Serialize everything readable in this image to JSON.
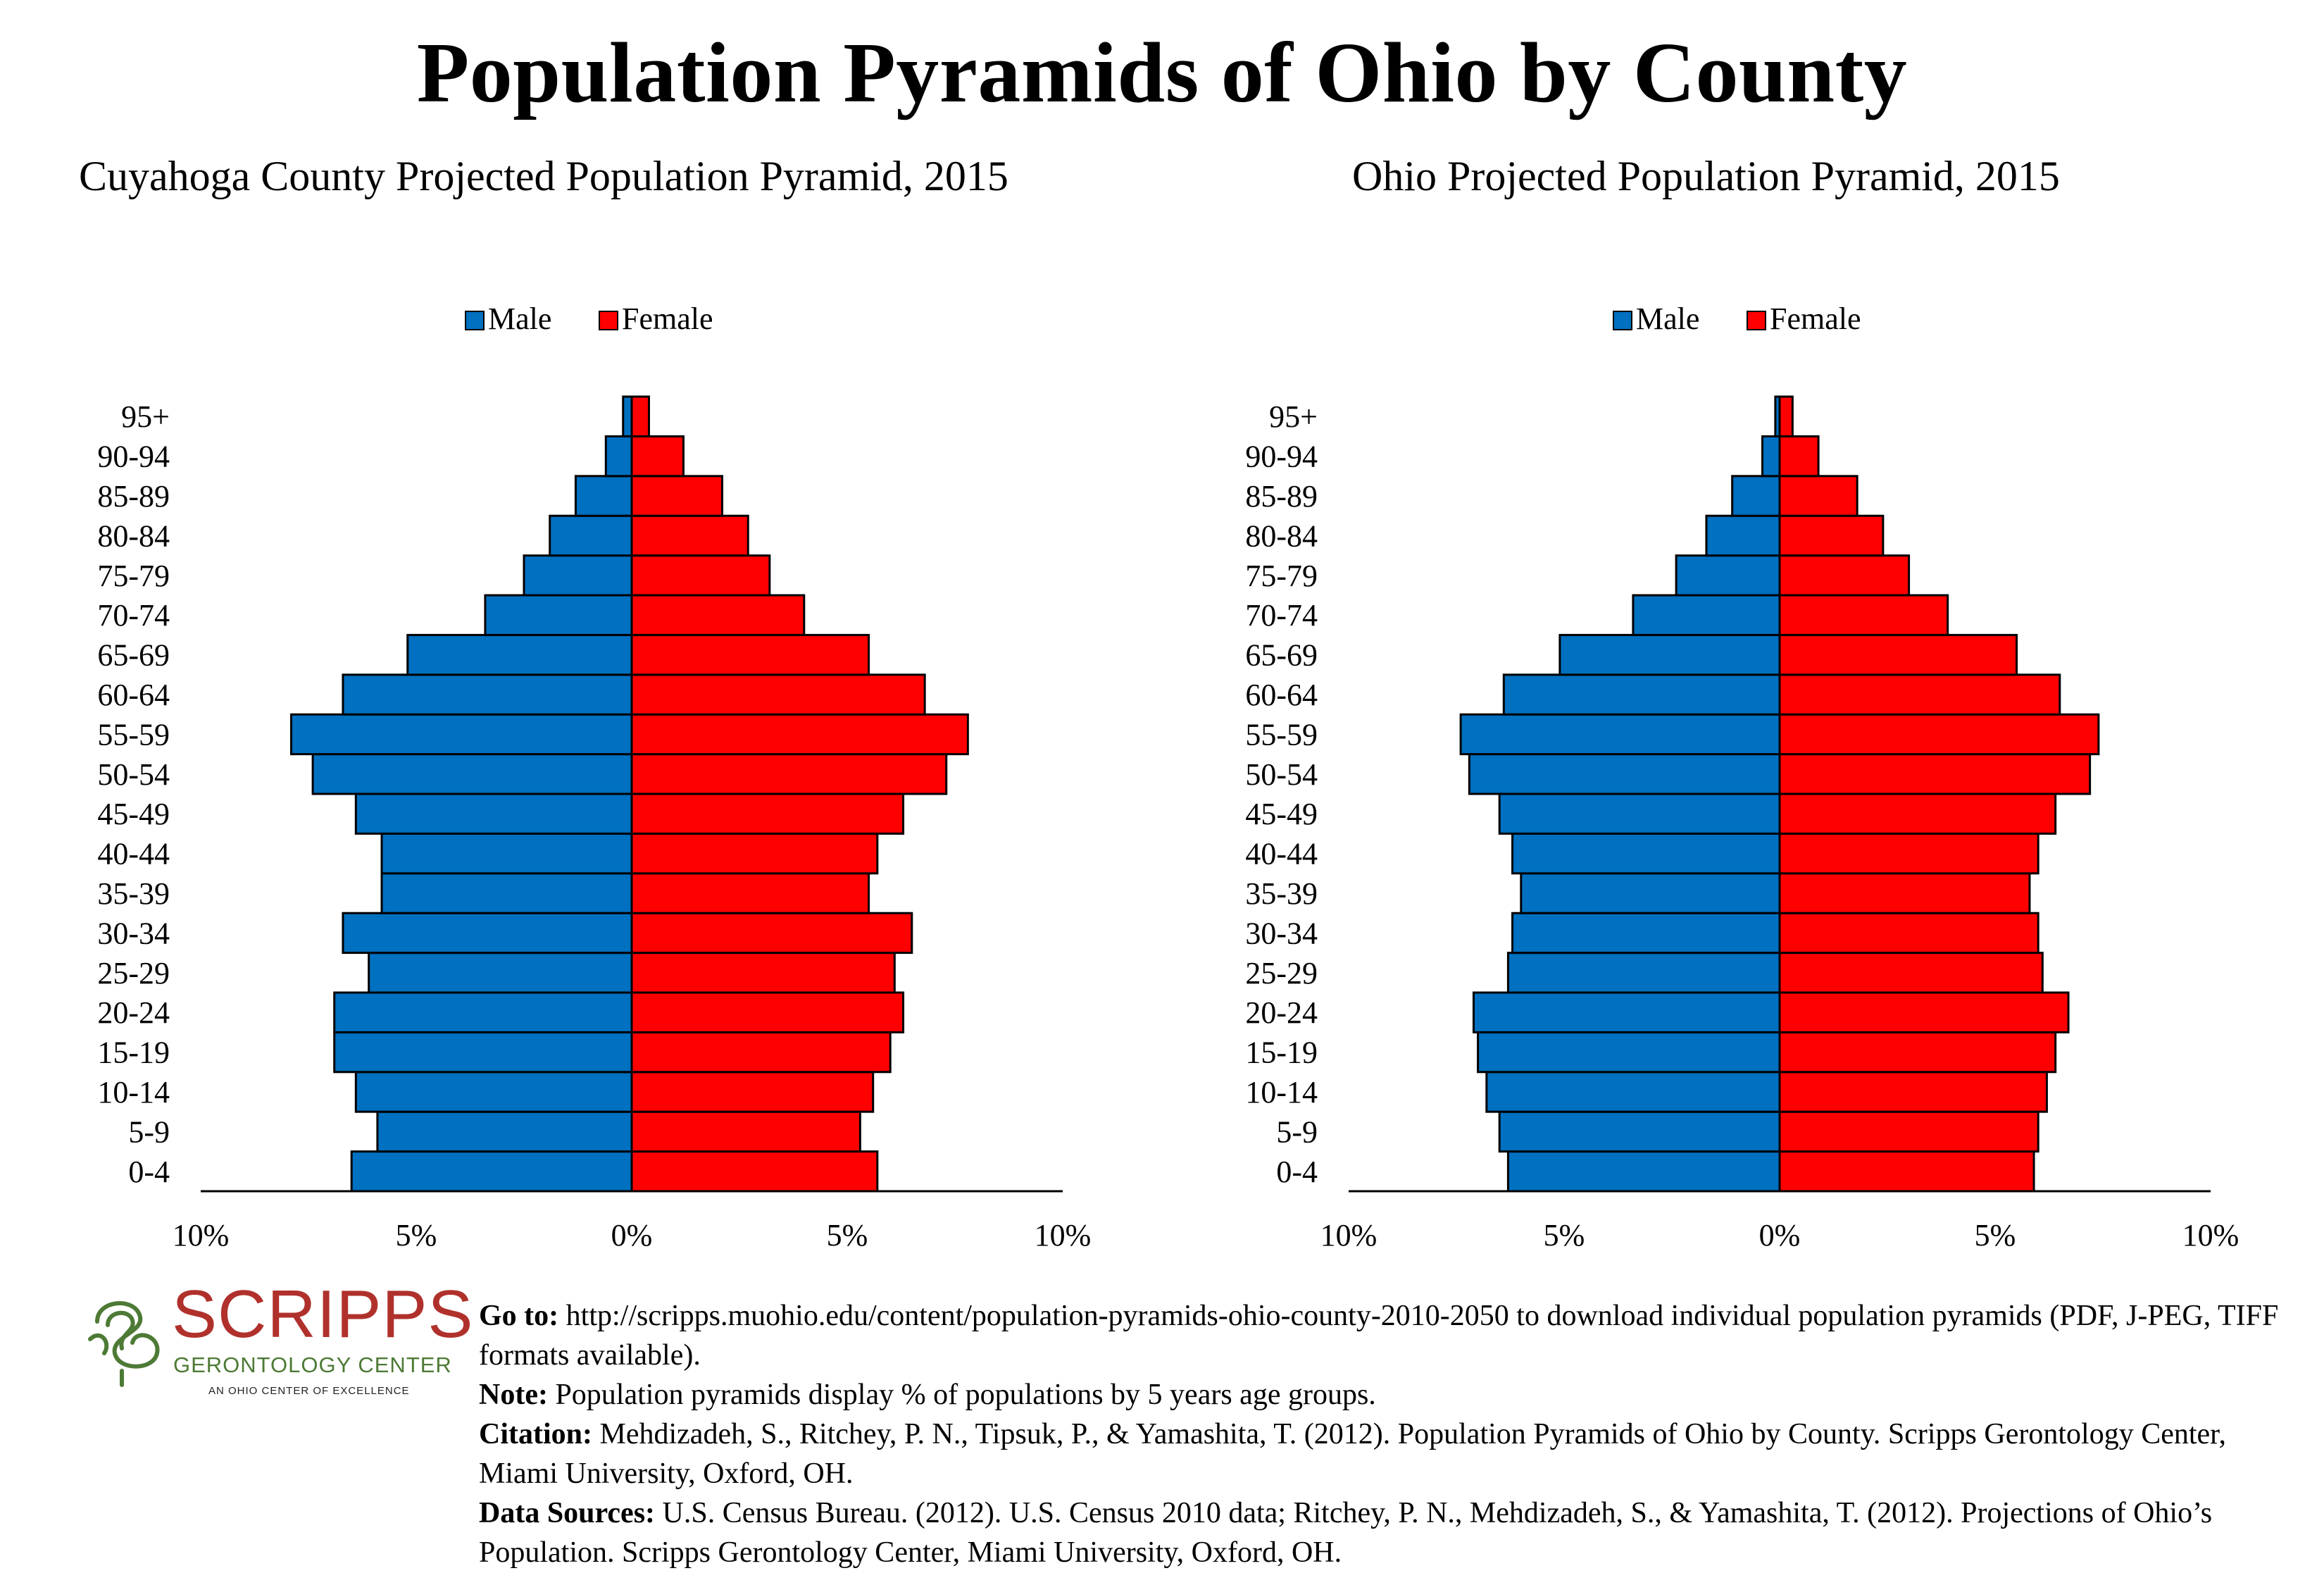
{
  "title": "Population Pyramids of Ohio by County",
  "chart_data": [
    {
      "type": "bar",
      "orientation": "horizontal-pyramid",
      "title": "Cuyahoga County Projected Population Pyramid, 2015",
      "legend": {
        "position": "top-center",
        "entries": [
          "Male",
          "Female"
        ]
      },
      "categories": [
        "0-4",
        "5-9",
        "10-14",
        "15-19",
        "20-24",
        "25-29",
        "30-34",
        "35-39",
        "40-44",
        "45-49",
        "50-54",
        "55-59",
        "60-64",
        "65-69",
        "70-74",
        "75-79",
        "80-84",
        "85-89",
        "90-94",
        "95+"
      ],
      "series": [
        {
          "name": "Male",
          "color": "#0070c0",
          "values": [
            6.5,
            5.9,
            6.4,
            6.9,
            6.9,
            6.1,
            6.7,
            5.8,
            5.8,
            6.4,
            7.4,
            7.9,
            6.7,
            5.2,
            3.4,
            2.5,
            1.9,
            1.3,
            0.6,
            0.2
          ]
        },
        {
          "name": "Female",
          "color": "#ff0000",
          "values": [
            5.7,
            5.3,
            5.6,
            6.0,
            6.3,
            6.1,
            6.5,
            5.5,
            5.7,
            6.3,
            7.3,
            7.8,
            6.8,
            5.5,
            4.0,
            3.2,
            2.7,
            2.1,
            1.2,
            0.4
          ]
        }
      ],
      "xlim": [
        -10,
        10
      ],
      "xticks": [
        "10%",
        "5%",
        "0%",
        "5%",
        "10%"
      ],
      "grid": false
    },
    {
      "type": "bar",
      "orientation": "horizontal-pyramid",
      "title": "Ohio Projected Population Pyramid, 2015",
      "legend": {
        "position": "top-center",
        "entries": [
          "Male",
          "Female"
        ]
      },
      "categories": [
        "0-4",
        "5-9",
        "10-14",
        "15-19",
        "20-24",
        "25-29",
        "30-34",
        "35-39",
        "40-44",
        "45-49",
        "50-54",
        "55-59",
        "60-64",
        "65-69",
        "70-74",
        "75-79",
        "80-84",
        "85-89",
        "90-94",
        "95+"
      ],
      "series": [
        {
          "name": "Male",
          "color": "#0070c0",
          "values": [
            6.3,
            6.5,
            6.8,
            7.0,
            7.1,
            6.3,
            6.2,
            6.0,
            6.2,
            6.5,
            7.2,
            7.4,
            6.4,
            5.1,
            3.4,
            2.4,
            1.7,
            1.1,
            0.4,
            0.1
          ]
        },
        {
          "name": "Female",
          "color": "#ff0000",
          "values": [
            5.9,
            6.0,
            6.2,
            6.4,
            6.7,
            6.1,
            6.0,
            5.8,
            6.0,
            6.4,
            7.2,
            7.4,
            6.5,
            5.5,
            3.9,
            3.0,
            2.4,
            1.8,
            0.9,
            0.3
          ]
        }
      ],
      "xlim": [
        -10,
        10
      ],
      "xticks": [
        "10%",
        "5%",
        "0%",
        "5%",
        "10%"
      ],
      "grid": false
    }
  ],
  "logo": {
    "name": "SCRIPPS",
    "subtitle": "GERONTOLOGY CENTER",
    "tagline": "AN OHIO CENTER OF EXCELLENCE",
    "red": "#b0312c",
    "green": "#4d7a35"
  },
  "notes": {
    "goto_label": "Go to:",
    "goto_text": "http://scripps.muohio.edu/content/population-pyramids-ohio-county-2010-2050 to download individual population pyramids (PDF, J-PEG, TIFF formats available).",
    "note_label": "Note:",
    "note_text": "Population pyramids display % of populations by 5 years age groups.",
    "citation_label": "Citation:",
    "citation_text": "Mehdizadeh, S., Ritchey, P. N., Tipsuk, P., & Yamashita, T. (2012). Population Pyramids of Ohio by County. Scripps Gerontology Center, Miami University, Oxford, OH.",
    "sources_label": "Data Sources:",
    "sources_text": "U.S. Census Bureau. (2012). U.S. Census 2010 data; Ritchey, P. N., Mehdizadeh, S., & Yamashita, T. (2012). Projections of Ohio’s Population. Scripps Gerontology Center, Miami University, Oxford, OH."
  }
}
